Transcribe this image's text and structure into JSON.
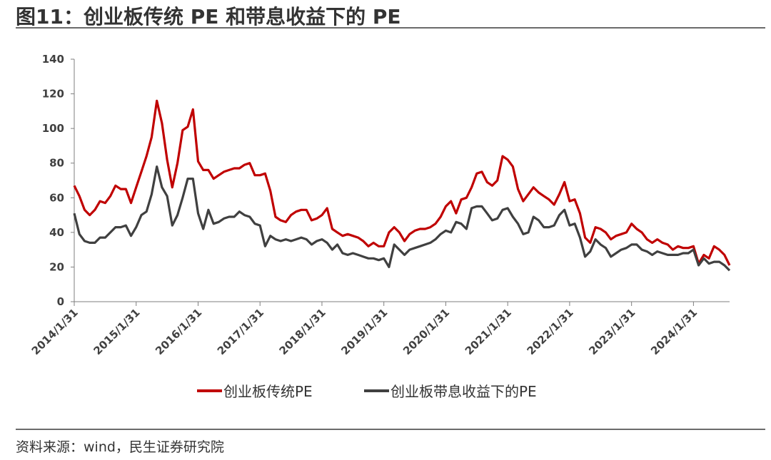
{
  "figure": {
    "title": "图11：创业板传统 PE 和带息收益下的 PE",
    "source": "资料来源：wind，民生证券研究院"
  },
  "colors": {
    "series1": "#c00000",
    "series2": "#404040",
    "axis": "#7f7f7f",
    "rule": "#6b6b6b"
  },
  "chart_data": {
    "type": "line",
    "ylim": [
      0,
      140
    ],
    "yticks": [
      0,
      20,
      40,
      60,
      80,
      100,
      120,
      140
    ],
    "xticks": [
      "2014/1/31",
      "2015/1/31",
      "2016/1/31",
      "2017/1/31",
      "2018/1/31",
      "2019/1/31",
      "2020/1/31",
      "2021/1/31",
      "2022/1/31",
      "2023/1/31",
      "2024/1/31"
    ],
    "x_start": "2014/1/31",
    "x_end": "2024/7/31",
    "frequency": "monthly",
    "legend_position": "bottom",
    "grid": false,
    "series": [
      {
        "name": "创业板传统PE",
        "values": [
          67,
          61,
          53,
          50,
          53,
          58,
          57,
          61,
          67,
          65,
          65,
          57,
          66,
          75,
          84,
          95,
          116,
          103,
          82,
          66,
          80,
          99,
          101,
          111,
          81,
          76,
          76,
          71,
          73,
          75,
          76,
          77,
          77,
          79,
          80,
          73,
          73,
          74,
          64,
          49,
          47,
          46,
          50,
          52,
          53,
          53,
          47,
          48,
          50,
          54,
          42,
          40,
          38,
          39,
          38,
          37,
          35,
          32,
          34,
          32,
          32,
          40,
          43,
          40,
          35,
          39,
          41,
          42,
          42,
          43,
          45,
          49,
          55,
          58,
          51,
          59,
          60,
          66,
          74,
          75,
          69,
          67,
          70,
          84,
          82,
          78,
          65,
          58,
          62,
          66,
          63,
          61,
          59,
          56,
          62,
          69,
          58,
          59,
          51,
          37,
          34,
          43,
          42,
          40,
          36,
          38,
          39,
          40,
          45,
          42,
          40,
          36,
          34,
          36,
          34,
          33,
          30,
          32,
          31,
          31,
          32,
          22,
          27,
          25,
          32,
          30,
          27,
          21
        ]
      },
      {
        "name": "创业板带息收益下的PE",
        "values": [
          51,
          39,
          35,
          34,
          34,
          37,
          37,
          40,
          43,
          43,
          44,
          38,
          43,
          50,
          52,
          62,
          78,
          66,
          61,
          44,
          50,
          60,
          71,
          71,
          51,
          42,
          53,
          45,
          46,
          48,
          49,
          49,
          52,
          50,
          49,
          45,
          44,
          32,
          38,
          36,
          35,
          36,
          35,
          36,
          37,
          36,
          33,
          35,
          36,
          34,
          30,
          33,
          28,
          27,
          28,
          27,
          26,
          25,
          25,
          24,
          25,
          20,
          33,
          30,
          27,
          30,
          31,
          32,
          33,
          34,
          36,
          39,
          41,
          40,
          46,
          45,
          42,
          54,
          55,
          55,
          51,
          47,
          48,
          53,
          54,
          49,
          45,
          39,
          40,
          49,
          47,
          43,
          43,
          44,
          50,
          53,
          44,
          45,
          37,
          26,
          29,
          36,
          33,
          31,
          26,
          28,
          30,
          31,
          33,
          33,
          30,
          29,
          27,
          29,
          28,
          27,
          27,
          27,
          28,
          28,
          30,
          21,
          25,
          22,
          23,
          23,
          21,
          18
        ]
      }
    ]
  }
}
